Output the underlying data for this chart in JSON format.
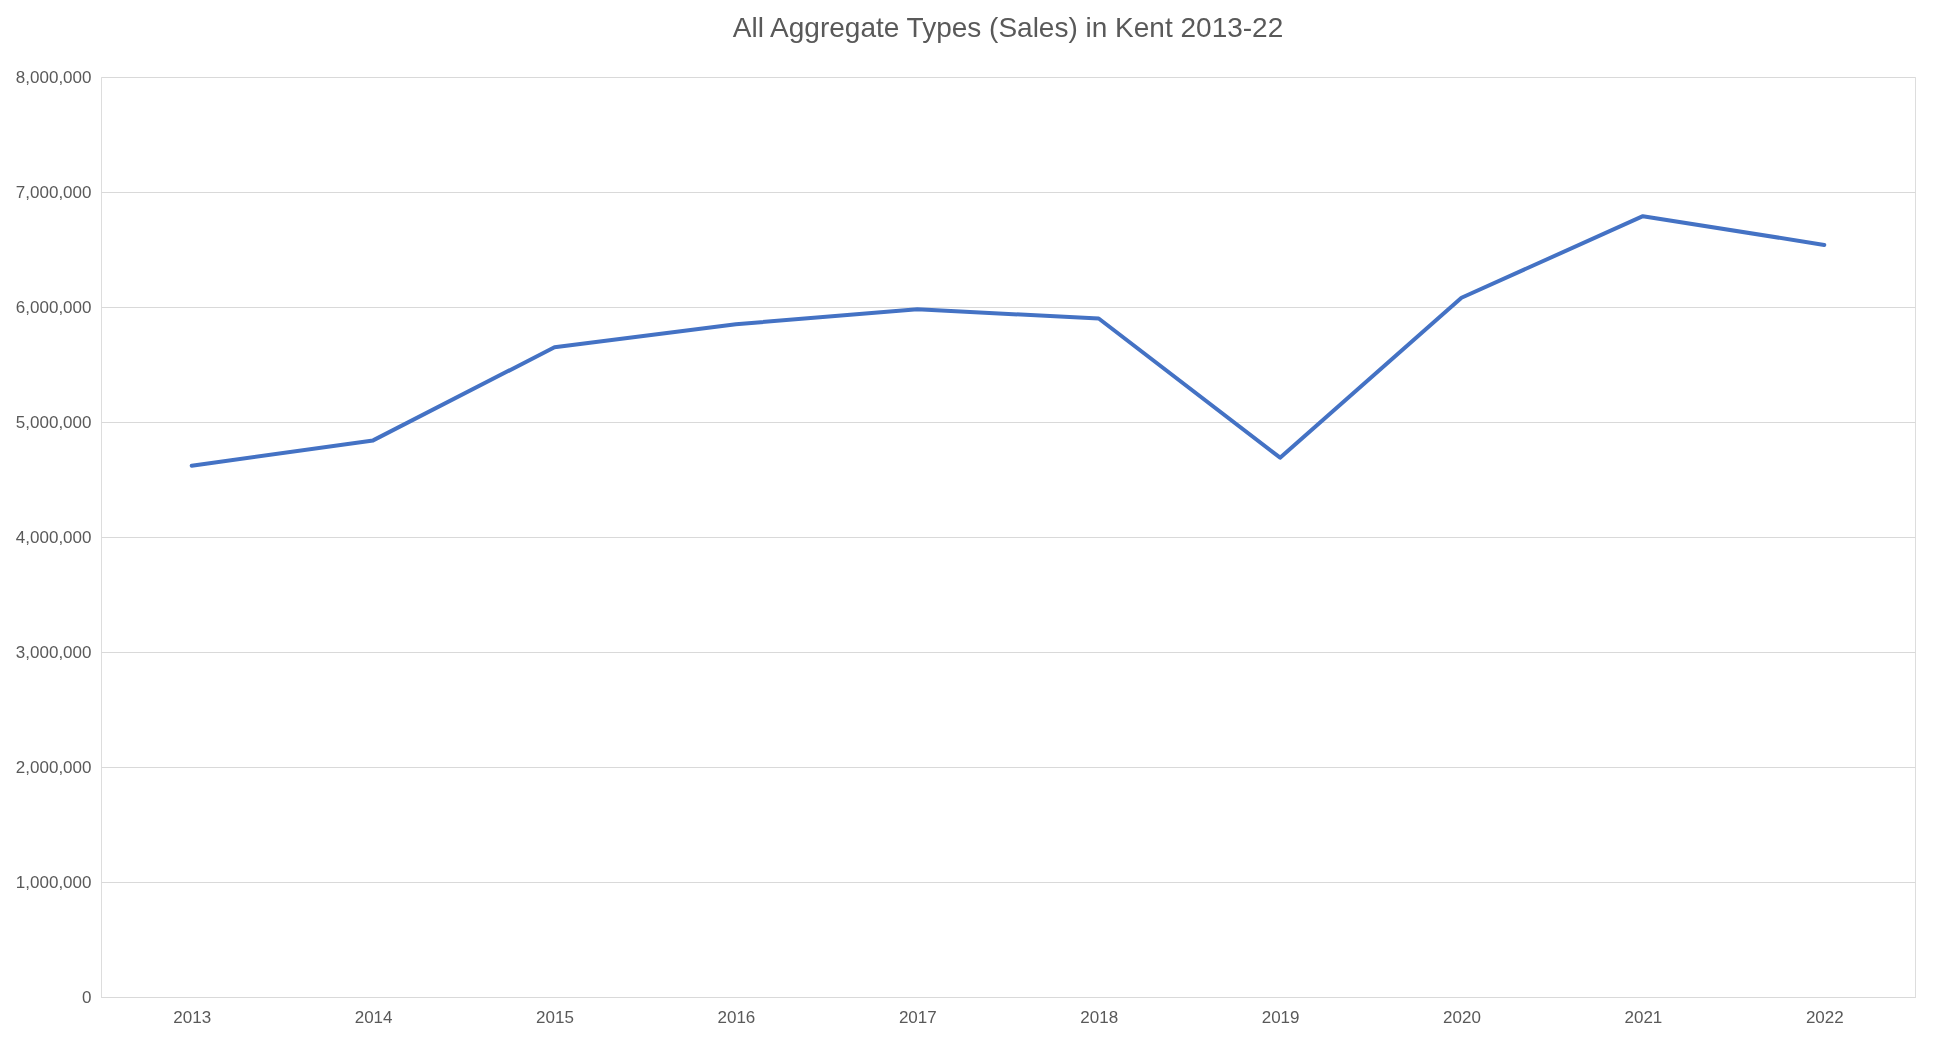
{
  "chart_data": {
    "type": "line",
    "title": "All Aggregate Types (Sales) in Kent 2013-22",
    "categories": [
      "2013",
      "2014",
      "2015",
      "2016",
      "2017",
      "2018",
      "2019",
      "2020",
      "2021",
      "2022"
    ],
    "series": [
      {
        "color": "#4472c4",
        "values": [
          4620000,
          4840000,
          5650000,
          5850000,
          5980000,
          5900000,
          4690000,
          6080000,
          6790000,
          6540000
        ]
      }
    ],
    "ylim": [
      0,
      8000000
    ],
    "yticks": [
      0,
      {
        "value": 1000000,
        "label": "1,000,000"
      },
      {
        "value": 2000000,
        "label": "2,000,000"
      },
      {
        "value": 3000000,
        "label": "3,000,000"
      },
      {
        "value": 4000000,
        "label": "4,000,000"
      },
      {
        "value": 5000000,
        "label": "5,000,000"
      },
      {
        "value": 6000000,
        "label": "6,000,000"
      },
      {
        "value": 7000000,
        "label": "7,000,000"
      },
      {
        "value": 8000000,
        "label": "8,000,000"
      }
    ],
    "grid": "y",
    "marker": "none",
    "line_style": "solid"
  }
}
